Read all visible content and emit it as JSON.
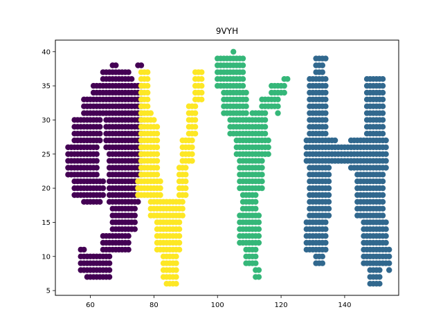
{
  "chart_data": {
    "type": "scatter",
    "title": "9VYH",
    "xlabel": "",
    "ylabel": "",
    "xlim": [
      49,
      157
    ],
    "ylim": [
      4.3,
      41.7
    ],
    "x_ticks": [
      60,
      80,
      100,
      120,
      140
    ],
    "y_ticks": [
      5,
      10,
      15,
      20,
      25,
      30,
      35,
      40
    ],
    "grid": false,
    "series": [
      {
        "color": "#440154",
        "regions": [
          {
            "x": [
              64,
              72
            ],
            "y": [
              36,
              37
            ]
          },
          {
            "x": [
              61,
              75
            ],
            "y": [
              34,
              35
            ]
          },
          {
            "x": [
              58,
              76
            ],
            "y": [
              31,
              33
            ]
          },
          {
            "x": [
              55,
              63
            ],
            "y": [
              27,
              30
            ]
          },
          {
            "x": [
              53,
              62
            ],
            "y": [
              22,
              26
            ]
          },
          {
            "x": [
              55,
              64
            ],
            "y": [
              19,
              21
            ]
          },
          {
            "x": [
              65,
              76
            ],
            "y": [
              26,
              30
            ]
          },
          {
            "x": [
              66,
              76
            ],
            "y": [
              22,
              25
            ]
          },
          {
            "x": [
              66,
              75
            ],
            "y": [
              18,
              21
            ]
          },
          {
            "x": [
              67,
              74
            ],
            "y": [
              14,
              17
            ]
          },
          {
            "x": [
              64,
              72
            ],
            "y": [
              11,
              13
            ]
          },
          {
            "x": [
              57,
              66
            ],
            "y": [
              8,
              10
            ]
          }
        ],
        "points": [
          [
            67,
            38
          ],
          [
            68,
            38
          ],
          [
            75,
            38
          ],
          [
            76,
            38
          ],
          [
            72,
            36
          ],
          [
            73,
            36
          ],
          [
            57,
            11
          ],
          [
            58,
            11
          ],
          [
            59,
            7
          ],
          [
            60,
            7
          ],
          [
            61,
            7
          ],
          [
            62,
            7
          ],
          [
            63,
            7
          ],
          [
            64,
            7
          ],
          [
            65,
            7
          ],
          [
            66,
            7
          ],
          [
            58,
            18
          ],
          [
            59,
            18
          ],
          [
            60,
            18
          ],
          [
            61,
            18
          ],
          [
            62,
            18
          ],
          [
            63,
            18
          ],
          [
            75,
            34
          ],
          [
            76,
            34
          ],
          [
            75,
            35
          ],
          [
            76,
            35
          ]
        ]
      },
      {
        "color": "#fde725",
        "regions": [
          {
            "x": [
              76,
              78
            ],
            "y": [
              30,
              37
            ]
          },
          {
            "x": [
              76,
              81
            ],
            "y": [
              22,
              29
            ]
          },
          {
            "x": [
              75,
              82
            ],
            "y": [
              19,
              21
            ]
          },
          {
            "x": [
              79,
              89
            ],
            "y": [
              16,
              18
            ]
          },
          {
            "x": [
              81,
              88
            ],
            "y": [
              11,
              15
            ]
          },
          {
            "x": [
              83,
              87
            ],
            "y": [
              7,
              10
            ]
          },
          {
            "x": [
              88,
              90
            ],
            "y": [
              19,
              23
            ]
          },
          {
            "x": [
              89,
              92
            ],
            "y": [
              24,
              27
            ]
          },
          {
            "x": [
              91,
              93
            ],
            "y": [
              28,
              32
            ]
          },
          {
            "x": [
              93,
              95
            ],
            "y": [
              33,
              37
            ]
          }
        ],
        "points": [
          [
            84,
            6
          ],
          [
            85,
            6
          ],
          [
            86,
            6
          ],
          [
            87,
            6
          ],
          [
            77,
            37
          ],
          [
            78,
            37
          ],
          [
            94,
            37
          ],
          [
            95,
            37
          ],
          [
            79,
            30
          ],
          [
            80,
            30
          ],
          [
            79,
            31
          ],
          [
            79,
            29
          ]
        ]
      },
      {
        "color": "#35b779",
        "regions": [
          {
            "x": [
              100,
              108
            ],
            "y": [
              35,
              39
            ]
          },
          {
            "x": [
              102,
              109
            ],
            "y": [
              31,
              34
            ]
          },
          {
            "x": [
              104,
              110
            ],
            "y": [
              28,
              30
            ]
          },
          {
            "x": [
              106,
              116
            ],
            "y": [
              25,
              27
            ]
          },
          {
            "x": [
              107,
              114
            ],
            "y": [
              20,
              24
            ]
          },
          {
            "x": [
              108,
              112
            ],
            "y": [
              17,
              19
            ]
          },
          {
            "x": [
              107,
              113
            ],
            "y": [
              12,
              16
            ]
          },
          {
            "x": [
              109,
              112
            ],
            "y": [
              9,
              11
            ]
          },
          {
            "x": [
              111,
              115
            ],
            "y": [
              28,
              31
            ]
          },
          {
            "x": [
              114,
              119
            ],
            "y": [
              32,
              33
            ]
          },
          {
            "x": [
              117,
              121
            ],
            "y": [
              34,
              35
            ]
          }
        ],
        "points": [
          [
            105,
            40
          ],
          [
            112,
            8
          ],
          [
            113,
            8
          ],
          [
            112,
            7
          ],
          [
            113,
            7
          ],
          [
            121,
            36
          ],
          [
            122,
            36
          ],
          [
            118,
            32
          ],
          [
            119,
            31
          ]
        ]
      },
      {
        "color": "#31688e",
        "regions": [
          {
            "x": [
              131,
              133
            ],
            "y": [
              37,
              39
            ]
          },
          {
            "x": [
              129,
              134
            ],
            "y": [
              28,
              36
            ]
          },
          {
            "x": [
              128,
              137
            ],
            "y": [
              24,
              27
            ]
          },
          {
            "x": [
              129,
              135
            ],
            "y": [
              16,
              23
            ]
          },
          {
            "x": [
              128,
              134
            ],
            "y": [
              11,
              15
            ]
          },
          {
            "x": [
              131,
              133
            ],
            "y": [
              9,
              10
            ]
          },
          {
            "x": [
              137,
              143
            ],
            "y": [
              24,
              26
            ]
          },
          {
            "x": [
              142,
              146
            ],
            "y": [
              23,
              27
            ]
          },
          {
            "x": [
              147,
              152
            ],
            "y": [
              28,
              36
            ]
          },
          {
            "x": [
              145,
              153
            ],
            "y": [
              23,
              27
            ]
          },
          {
            "x": [
              144,
              152
            ],
            "y": [
              16,
              22
            ]
          },
          {
            "x": [
              146,
              153
            ],
            "y": [
              9,
              15
            ]
          },
          {
            "x": [
              148,
              151
            ],
            "y": [
              6,
              8
            ]
          }
        ],
        "points": [
          [
            133,
            39
          ],
          [
            134,
            39
          ],
          [
            153,
            11
          ],
          [
            154,
            11
          ],
          [
            154,
            10
          ],
          [
            154,
            9
          ],
          [
            154,
            8
          ]
        ]
      }
    ]
  }
}
